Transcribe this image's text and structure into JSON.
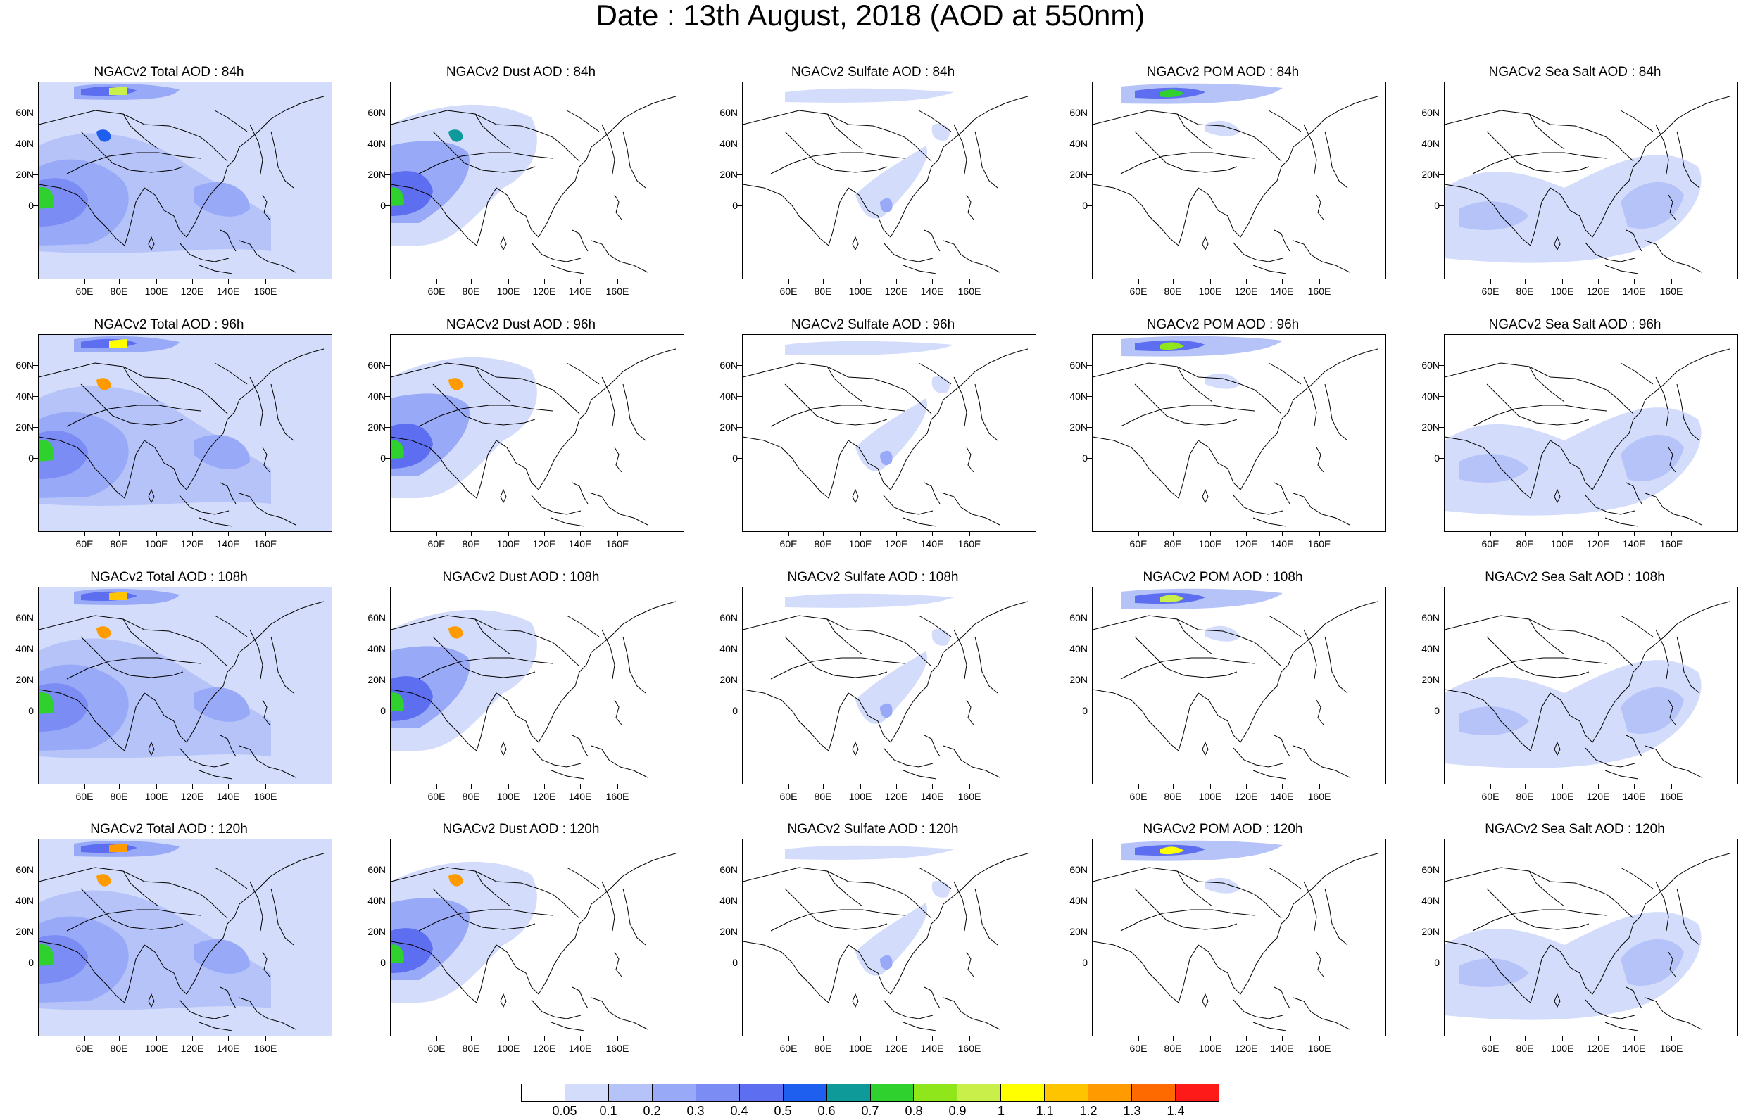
{
  "title": "Date : 13th August, 2018 (AOD at 550nm)",
  "panels": [
    "NGACv2 Total AOD : 84h",
    "NGACv2 Dust AOD : 84h",
    "NGACv2 Sulfate AOD : 84h",
    "NGACv2 POM AOD : 84h",
    "NGACv2 Sea Salt AOD : 84h",
    "NGACv2 Total AOD : 96h",
    "NGACv2 Dust AOD : 96h",
    "NGACv2 Sulfate AOD : 96h",
    "NGACv2 POM AOD : 96h",
    "NGACv2 Sea Salt AOD : 96h",
    "NGACv2 Total AOD : 108h",
    "NGACv2 Dust AOD : 108h",
    "NGACv2 Sulfate AOD : 108h",
    "NGACv2 POM AOD : 108h",
    "NGACv2 Sea Salt AOD : 108h",
    "NGACv2 Total AOD : 120h",
    "NGACv2 Dust AOD : 120h",
    "NGACv2 Sulfate AOD : 120h",
    "NGACv2 POM AOD : 120h",
    "NGACv2 Sea Salt  AOD : 120h"
  ],
  "lat_labels": [
    "60N",
    "40N",
    "20N",
    "0"
  ],
  "lon_labels": [
    "60E",
    "80E",
    "100E",
    "120E",
    "140E",
    "160E"
  ],
  "colorbar": {
    "labels": [
      "0.05",
      "0.1",
      "0.2",
      "0.3",
      "0.4",
      "0.5",
      "0.6",
      "0.7",
      "0.8",
      "0.9",
      "1",
      "1.1",
      "1.2",
      "1.3",
      "1.4"
    ],
    "colors": [
      "#ffffff",
      "#d4dcfb",
      "#b5c3f9",
      "#98aaf7",
      "#7b8df4",
      "#5d6ef0",
      "#1e5ff0",
      "#0f9a9a",
      "#2ed12e",
      "#8fe61a",
      "#c9f04a",
      "#ffff00",
      "#ffc400",
      "#ff9a00",
      "#ff6a00",
      "#ff1a1a"
    ]
  }
}
